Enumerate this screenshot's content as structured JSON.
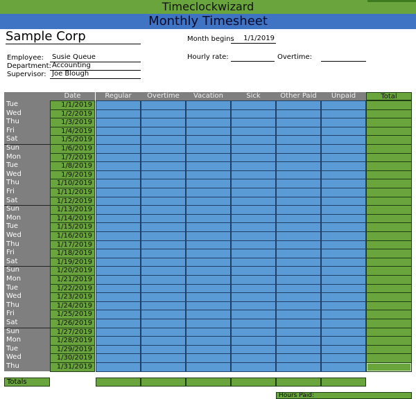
{
  "banners": {
    "brand": "Timeclockwizard",
    "title": "Monthly Timesheet"
  },
  "company": "Sample Corp",
  "header_fields": {
    "employee_label": "Employee:",
    "employee_value": "Susie Queue",
    "department_label": "Department:",
    "department_value": "Accounting",
    "supervisor_label": "Supervisor:",
    "supervisor_value": "Joe Blough",
    "month_begins_label": "Month begins",
    "month_begins_value": "1/1/2019",
    "hourly_rate_label": "Hourly rate:",
    "hourly_rate_value": "",
    "overtime_label": "Overtime:",
    "overtime_value": ""
  },
  "table": {
    "columns": [
      "Date",
      "Regular",
      "Overtime",
      "Vacation",
      "Sick",
      "Other Paid",
      "Unpaid",
      "Total"
    ],
    "rows": [
      {
        "day": "Tue",
        "date": "1/1/2019"
      },
      {
        "day": "Wed",
        "date": "1/2/2019"
      },
      {
        "day": "Thu",
        "date": "1/3/2019"
      },
      {
        "day": "Fri",
        "date": "1/4/2019"
      },
      {
        "day": "Sat",
        "date": "1/5/2019"
      },
      {
        "day": "Sun",
        "date": "1/6/2019"
      },
      {
        "day": "Mon",
        "date": "1/7/2019"
      },
      {
        "day": "Tue",
        "date": "1/8/2019"
      },
      {
        "day": "Wed",
        "date": "1/9/2019"
      },
      {
        "day": "Thu",
        "date": "1/10/2019"
      },
      {
        "day": "Fri",
        "date": "1/11/2019"
      },
      {
        "day": "Sat",
        "date": "1/12/2019"
      },
      {
        "day": "Sun",
        "date": "1/13/2019"
      },
      {
        "day": "Mon",
        "date": "1/14/2019"
      },
      {
        "day": "Tue",
        "date": "1/15/2019"
      },
      {
        "day": "Wed",
        "date": "1/16/2019"
      },
      {
        "day": "Thu",
        "date": "1/17/2019"
      },
      {
        "day": "Fri",
        "date": "1/18/2019"
      },
      {
        "day": "Sat",
        "date": "1/19/2019"
      },
      {
        "day": "Sun",
        "date": "1/20/2019"
      },
      {
        "day": "Mon",
        "date": "1/21/2019"
      },
      {
        "day": "Tue",
        "date": "1/22/2019"
      },
      {
        "day": "Wed",
        "date": "1/23/2019"
      },
      {
        "day": "Thu",
        "date": "1/24/2019"
      },
      {
        "day": "Fri",
        "date": "1/25/2019"
      },
      {
        "day": "Sat",
        "date": "1/26/2019"
      },
      {
        "day": "Sun",
        "date": "1/27/2019"
      },
      {
        "day": "Mon",
        "date": "1/28/2019"
      },
      {
        "day": "Tue",
        "date": "1/29/2019"
      },
      {
        "day": "Wed",
        "date": "1/30/2019"
      },
      {
        "day": "Thu",
        "date": "1/31/2019"
      }
    ],
    "totals_label": "Totals",
    "hours_paid_label": "Hours Paid:"
  },
  "colors": {
    "green": "#6aa43c",
    "blue": "#5b9bd5",
    "gray": "#7f7f7f"
  }
}
